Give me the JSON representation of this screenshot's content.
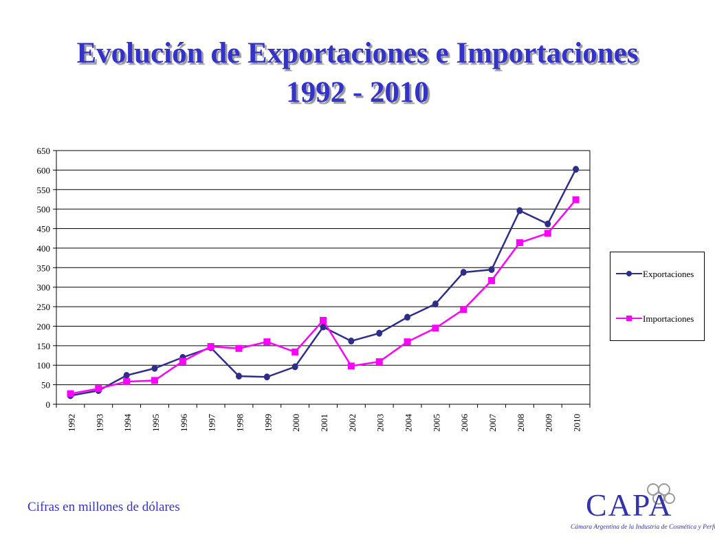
{
  "title_line1": "Evolución de Exportaciones e Importaciones",
  "title_line2": "1992 - 2010",
  "footnote": "Cifras en millones de dólares",
  "logo": {
    "name": "CAPA",
    "tagline": "Cámara Argentina de la Industria de Cosmética y Perfumería"
  },
  "chart_data": {
    "type": "line",
    "title": "Evolución de Exportaciones e Importaciones 1992 - 2010",
    "xlabel": "",
    "ylabel": "",
    "categories": [
      "1992",
      "1993",
      "1994",
      "1995",
      "1996",
      "1997",
      "1998",
      "1999",
      "2000",
      "2001",
      "2002",
      "2003",
      "2004",
      "2005",
      "2006",
      "2007",
      "2008",
      "2009",
      "2010"
    ],
    "ylim": [
      0,
      650
    ],
    "yticks": [
      0,
      50,
      100,
      150,
      200,
      250,
      300,
      350,
      400,
      450,
      500,
      550,
      600,
      650
    ],
    "grid": "horizontal",
    "legend_position": "right",
    "series": [
      {
        "name": "Exportaciones",
        "color": "#2e2e8a",
        "marker": "circle",
        "values": [
          22,
          35,
          74,
          92,
          120,
          145,
          72,
          70,
          96,
          198,
          162,
          182,
          223,
          257,
          338,
          345,
          496,
          462,
          602
        ]
      },
      {
        "name": "Importaciones",
        "color": "#ff00ff",
        "marker": "square",
        "values": [
          27,
          40,
          58,
          61,
          110,
          148,
          143,
          160,
          134,
          215,
          98,
          109,
          160,
          195,
          243,
          317,
          414,
          438,
          524
        ]
      }
    ]
  }
}
